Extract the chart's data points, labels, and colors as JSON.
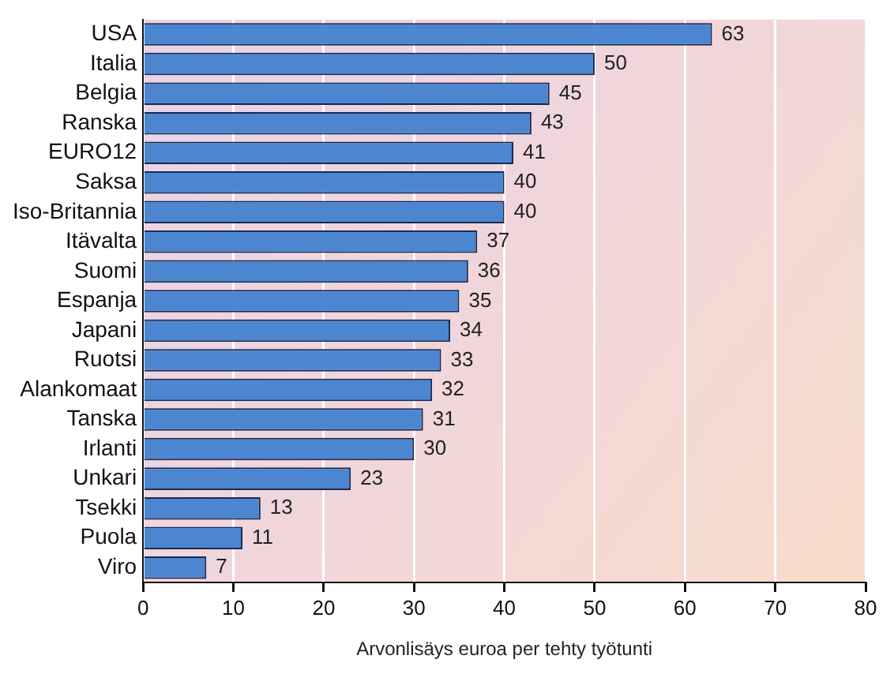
{
  "chart_data": {
    "type": "bar",
    "orientation": "horizontal",
    "xlabel": "Arvonlisäys euroa per tehty työtunti",
    "categories": [
      "USA",
      "Italia",
      "Belgia",
      "Ranska",
      "EURO12",
      "Saksa",
      "Iso-Britannia",
      "Itävalta",
      "Suomi",
      "Espanja",
      "Japani",
      "Ruotsi",
      "Alankomaat",
      "Tanska",
      "Irlanti",
      "Unkari",
      "Tsekki",
      "Puola",
      "Viro"
    ],
    "values": [
      63,
      50,
      45,
      43,
      41,
      40,
      40,
      37,
      36,
      35,
      34,
      33,
      32,
      31,
      30,
      23,
      13,
      11,
      7
    ],
    "color": "#4d86d0",
    "xlim": [
      0,
      80
    ],
    "xticks": [
      0,
      10,
      20,
      30,
      40,
      50,
      60,
      70,
      80
    ],
    "grid": "x",
    "data_labels": true,
    "legend": false
  }
}
